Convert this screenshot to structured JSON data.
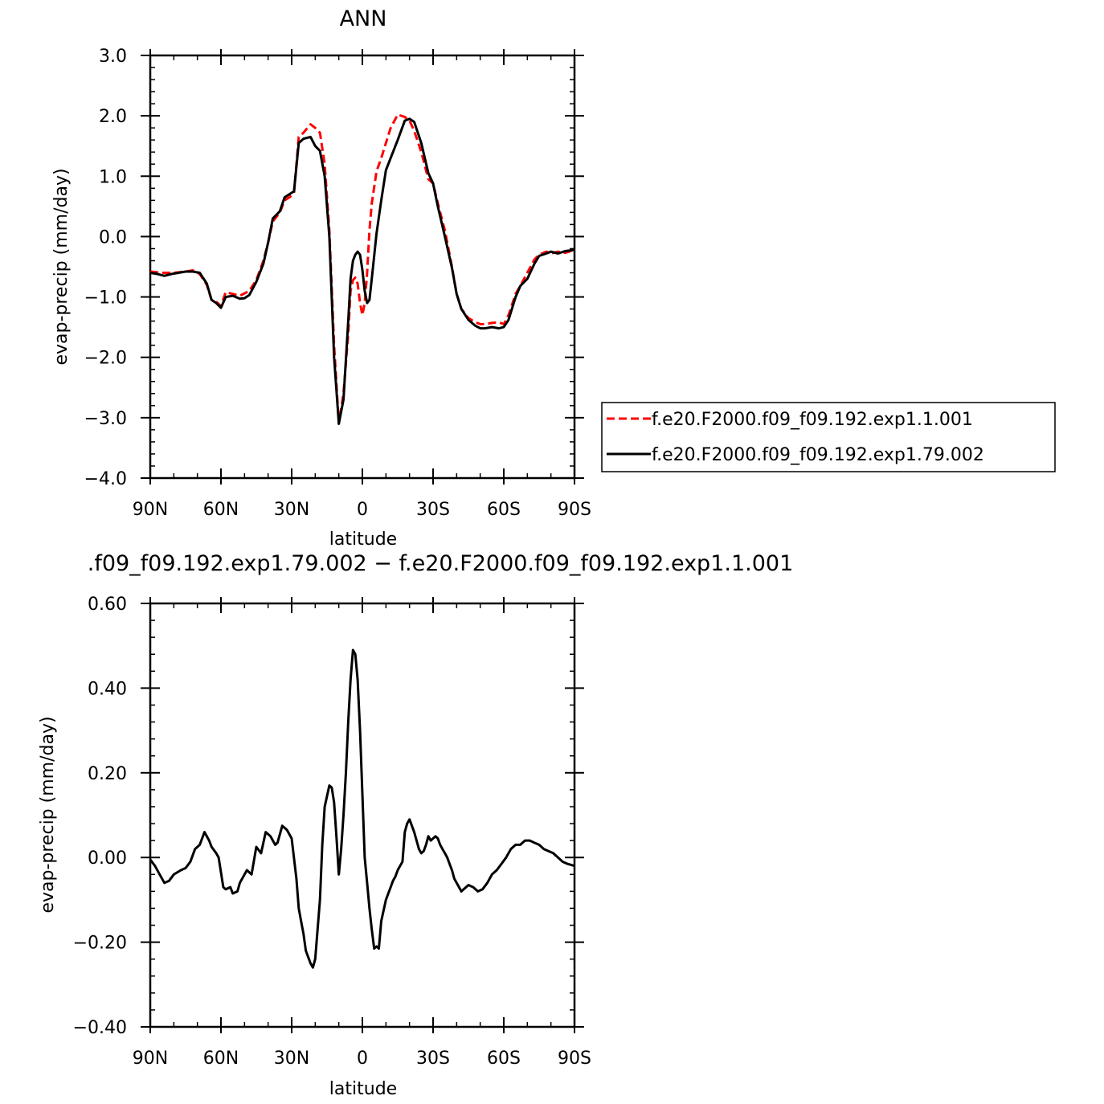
{
  "chart_data": [
    {
      "type": "line",
      "title": "ANN",
      "xlabel": "latitude",
      "ylabel": "evap-precip (mm/day)",
      "xlim": [
        90,
        -90
      ],
      "ylim": [
        -4.0,
        3.0
      ],
      "xticks": [
        90,
        60,
        30,
        0,
        -30,
        -60,
        -90
      ],
      "xtick_labels": [
        "90N",
        "60N",
        "30N",
        "0",
        "30S",
        "60S",
        "90S"
      ],
      "yticks": [
        -4.0,
        -3.0,
        -2.0,
        -1.0,
        0.0,
        1.0,
        2.0,
        3.0
      ],
      "ytick_labels": [
        "−4.0",
        "−3.0",
        "−2.0",
        "−1.0",
        "0.0",
        "1.0",
        "2.0",
        "3.0"
      ],
      "grid": false,
      "legend_position": "right",
      "series": [
        {
          "name": "f.e20.F2000.f09_f09.192.exp1.1.001",
          "color": "#ff0000",
          "dash": "dashed",
          "x": [
            90,
            85,
            80,
            75,
            72,
            69,
            66,
            64,
            62,
            60,
            58,
            55,
            52,
            48,
            45,
            42,
            40,
            38,
            35,
            33,
            31,
            29,
            27,
            25,
            22,
            20,
            18,
            16,
            14,
            12,
            10,
            8,
            6,
            5,
            4,
            3,
            2,
            1,
            0,
            -1,
            -2,
            -3,
            -4,
            -6,
            -8,
            -10,
            -12,
            -15,
            -18,
            -20,
            -22,
            -25,
            -28,
            -30,
            -32,
            -35,
            -38,
            -40,
            -42,
            -45,
            -48,
            -50,
            -52,
            -55,
            -58,
            -60,
            -62,
            -65,
            -67,
            -70,
            -73,
            -75,
            -78,
            -80,
            -83,
            -86,
            -90
          ],
          "y": [
            -0.58,
            -0.6,
            -0.6,
            -0.58,
            -0.56,
            -0.62,
            -0.8,
            -1.05,
            -1.08,
            -1.15,
            -0.92,
            -0.95,
            -0.98,
            -0.9,
            -0.72,
            -0.4,
            -0.1,
            0.25,
            0.4,
            0.6,
            0.65,
            0.72,
            1.65,
            1.72,
            1.86,
            1.8,
            1.72,
            1.2,
            0.1,
            -1.8,
            -3.1,
            -2.6,
            -1.6,
            -0.9,
            -0.72,
            -0.68,
            -0.78,
            -1.1,
            -1.3,
            -1.1,
            -0.6,
            0.1,
            0.55,
            1.08,
            1.3,
            1.55,
            1.8,
            2.02,
            1.98,
            1.92,
            1.75,
            1.4,
            0.95,
            0.88,
            0.55,
            0.1,
            -0.5,
            -0.95,
            -1.2,
            -1.35,
            -1.42,
            -1.45,
            -1.45,
            -1.43,
            -1.42,
            -1.45,
            -1.3,
            -0.95,
            -0.82,
            -0.6,
            -0.38,
            -0.3,
            -0.25,
            -0.28,
            -0.25,
            -0.27,
            -0.22
          ]
        },
        {
          "name": "f.e20.F2000.f09_f09.192.exp1.79.002",
          "color": "#000000",
          "dash": "solid",
          "x": [
            90,
            87,
            84,
            81,
            78,
            75,
            72,
            69,
            66,
            64,
            62,
            60,
            58,
            55,
            52,
            50,
            48,
            45,
            42,
            40,
            38,
            35,
            33,
            31,
            29,
            27,
            25,
            22,
            20,
            18,
            16,
            14,
            12,
            10,
            8,
            6,
            5,
            4,
            3,
            2,
            1,
            0,
            -1,
            -2,
            -3,
            -4,
            -6,
            -8,
            -10,
            -12,
            -15,
            -18,
            -20,
            -22,
            -25,
            -28,
            -30,
            -32,
            -35,
            -38,
            -40,
            -42,
            -45,
            -48,
            -50,
            -52,
            -55,
            -58,
            -60,
            -62,
            -65,
            -67,
            -70,
            -73,
            -75,
            -78,
            -80,
            -83,
            -86,
            -90
          ],
          "y": [
            -0.6,
            -0.62,
            -0.65,
            -0.62,
            -0.6,
            -0.58,
            -0.58,
            -0.6,
            -0.78,
            -1.05,
            -1.1,
            -1.18,
            -1.0,
            -0.98,
            -1.03,
            -1.02,
            -0.97,
            -0.75,
            -0.45,
            -0.1,
            0.3,
            0.42,
            0.65,
            0.7,
            0.75,
            1.55,
            1.62,
            1.65,
            1.5,
            1.42,
            1.0,
            0.0,
            -2.0,
            -3.1,
            -2.7,
            -1.4,
            -0.7,
            -0.4,
            -0.3,
            -0.25,
            -0.3,
            -0.55,
            -0.9,
            -1.1,
            -1.05,
            -0.7,
            0.05,
            0.6,
            1.1,
            1.3,
            1.6,
            1.92,
            1.95,
            1.9,
            1.55,
            1.05,
            0.88,
            0.5,
            0.0,
            -0.52,
            -0.95,
            -1.2,
            -1.38,
            -1.48,
            -1.52,
            -1.52,
            -1.5,
            -1.52,
            -1.5,
            -1.38,
            -1.0,
            -0.82,
            -0.7,
            -0.45,
            -0.32,
            -0.28,
            -0.25,
            -0.28,
            -0.24,
            -0.22
          ]
        }
      ]
    },
    {
      "type": "line",
      "title": ".f09_f09.192.exp1.79.002 − f.e20.F2000.f09_f09.192.exp1.1.001",
      "xlabel": "latitude",
      "ylabel": "evap-precip (mm/day)",
      "xlim": [
        90,
        -90
      ],
      "ylim": [
        -0.4,
        0.6
      ],
      "xticks": [
        90,
        60,
        30,
        0,
        -30,
        -60,
        -90
      ],
      "xtick_labels": [
        "90N",
        "60N",
        "30N",
        "0",
        "30S",
        "60S",
        "90S"
      ],
      "yticks": [
        -0.4,
        -0.2,
        0.0,
        0.2,
        0.4,
        0.6
      ],
      "ytick_labels": [
        "−0.40",
        "−0.20",
        "0.00",
        "0.20",
        "0.40",
        "0.60"
      ],
      "grid": false,
      "series": [
        {
          "color": "#000000",
          "dash": "solid",
          "x": [
            90,
            88,
            86,
            84,
            82,
            80,
            77,
            75,
            73,
            71,
            69,
            67,
            65,
            64,
            62,
            61,
            59,
            58,
            56,
            55,
            53,
            52,
            50,
            49,
            47,
            45,
            43,
            41,
            39,
            37,
            36,
            34,
            32,
            30,
            28,
            27,
            26,
            25,
            24,
            22,
            21,
            20,
            18,
            17,
            16,
            14,
            13,
            12,
            11,
            10,
            9,
            8,
            7,
            6,
            5,
            4,
            3,
            2,
            1,
            0,
            -1,
            -2,
            -3,
            -4,
            -5,
            -6,
            -7,
            -8,
            -10,
            -12,
            -13,
            -14,
            -15,
            -16,
            -17,
            -18,
            -19,
            -20,
            -22,
            -24,
            -25,
            -26,
            -27,
            -28,
            -29,
            -30,
            -31,
            -32,
            -33,
            -34,
            -35,
            -36,
            -37,
            -38,
            -39,
            -40,
            -41,
            -42,
            -43,
            -45,
            -47,
            -49,
            -51,
            -53,
            -55,
            -57,
            -59,
            -61,
            -63,
            -65,
            -67,
            -69,
            -71,
            -73,
            -75,
            -77,
            -79,
            -81,
            -83,
            -85,
            -87,
            -90
          ],
          "y": [
            -0.005,
            -0.02,
            -0.04,
            -0.06,
            -0.055,
            -0.04,
            -0.03,
            -0.025,
            -0.01,
            0.02,
            0.03,
            0.06,
            0.04,
            0.025,
            0.01,
            0.0,
            -0.07,
            -0.075,
            -0.07,
            -0.085,
            -0.08,
            -0.06,
            -0.04,
            -0.03,
            -0.04,
            0.025,
            0.01,
            0.06,
            0.05,
            0.03,
            0.035,
            0.075,
            0.065,
            0.045,
            -0.05,
            -0.12,
            -0.15,
            -0.18,
            -0.22,
            -0.25,
            -0.26,
            -0.24,
            -0.1,
            0.03,
            0.12,
            0.17,
            0.165,
            0.13,
            0.05,
            -0.04,
            0.02,
            0.1,
            0.2,
            0.32,
            0.42,
            0.49,
            0.48,
            0.42,
            0.3,
            0.15,
            0.0,
            -0.06,
            -0.12,
            -0.17,
            -0.215,
            -0.21,
            -0.215,
            -0.15,
            -0.1,
            -0.07,
            -0.055,
            -0.045,
            -0.03,
            -0.02,
            -0.01,
            0.06,
            0.08,
            0.09,
            0.06,
            0.02,
            0.01,
            0.015,
            0.03,
            0.05,
            0.04,
            0.045,
            0.05,
            0.045,
            0.03,
            0.02,
            0.01,
            0.0,
            -0.015,
            -0.03,
            -0.05,
            -0.06,
            -0.07,
            -0.08,
            -0.075,
            -0.065,
            -0.07,
            -0.08,
            -0.075,
            -0.06,
            -0.04,
            -0.03,
            -0.015,
            0.0,
            0.02,
            0.03,
            0.03,
            0.04,
            0.04,
            0.035,
            0.03,
            0.02,
            0.015,
            0.01,
            0.0,
            -0.01,
            -0.015,
            -0.02
          ]
        }
      ]
    }
  ]
}
